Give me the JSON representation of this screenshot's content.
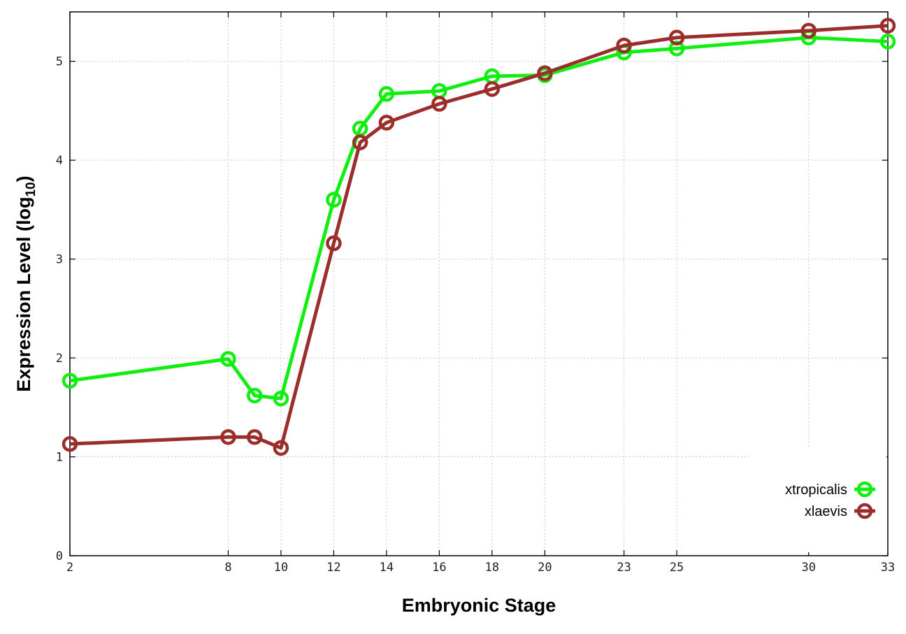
{
  "chart_data": {
    "type": "line",
    "xlabel": "Embryonic Stage",
    "ylabel_main": "Expression Level (log",
    "ylabel_sub": "10",
    "ylabel_close": ")",
    "xlim": [
      2,
      33
    ],
    "ylim": [
      0,
      5.5
    ],
    "x_scale": "custom-categorical-spacing",
    "grid": true,
    "legend_position": "bottom-right",
    "x_ticks": [
      "2",
      "8",
      "10",
      "12",
      "14",
      "16",
      "18",
      "20",
      "23",
      "25",
      "30",
      "33"
    ],
    "y_ticks": [
      "0",
      "1",
      "2",
      "3",
      "4",
      "5"
    ],
    "x": [
      2,
      8,
      9,
      10,
      12,
      13,
      14,
      16,
      18,
      20,
      23,
      25,
      30,
      33
    ],
    "series": [
      {
        "name": "xtropicalis",
        "color": "#11ee11",
        "values": [
          1.77,
          1.99,
          1.62,
          1.59,
          3.6,
          4.32,
          4.67,
          4.7,
          4.85,
          4.86,
          5.09,
          5.13,
          5.24,
          5.2
        ]
      },
      {
        "name": "xlaevis",
        "color": "#9b2d2b",
        "values": [
          1.13,
          1.2,
          1.2,
          1.09,
          3.16,
          4.18,
          4.38,
          4.57,
          4.72,
          4.88,
          5.16,
          5.24,
          5.31,
          5.36
        ]
      }
    ]
  }
}
